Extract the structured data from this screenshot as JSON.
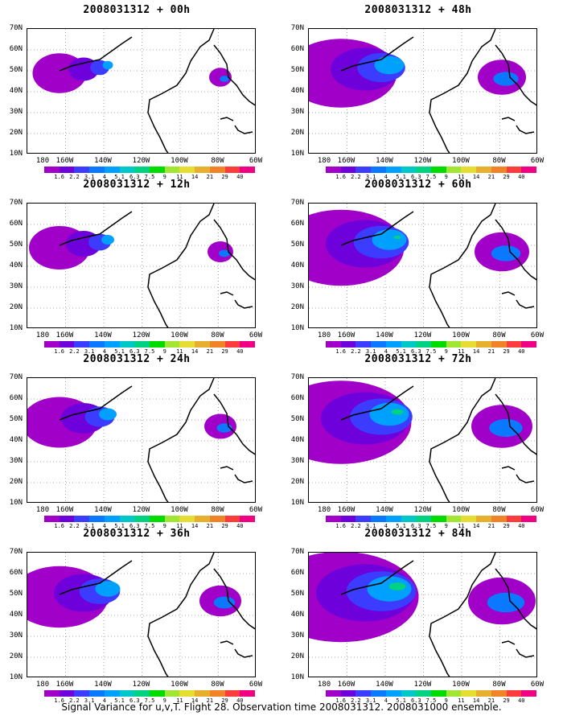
{
  "panels": [
    {
      "id": "p00",
      "title": "2008031312 + 00h",
      "intensity": 0.15
    },
    {
      "id": "p48",
      "title": "2008031312 + 48h",
      "intensity": 0.55
    },
    {
      "id": "p12",
      "title": "2008031312 + 12h",
      "intensity": 0.2
    },
    {
      "id": "p60",
      "title": "2008031312 + 60h",
      "intensity": 0.65
    },
    {
      "id": "p24",
      "title": "2008031312 + 24h",
      "intensity": 0.3
    },
    {
      "id": "p72",
      "title": "2008031312 + 72h",
      "intensity": 0.75
    },
    {
      "id": "p36",
      "title": "2008031312 + 36h",
      "intensity": 0.45
    },
    {
      "id": "p84",
      "title": "2008031312 + 84h",
      "intensity": 0.85
    }
  ],
  "y_axis_labels": [
    "70N",
    "60N",
    "50N",
    "40N",
    "30N",
    "20N",
    "10N"
  ],
  "x_axis_labels": [
    "180",
    "160W",
    "140W",
    "120W",
    "100W",
    "80W",
    "60W"
  ],
  "colorbar_labels": [
    "1.6",
    "2.2",
    "3.1",
    "4",
    "5.1",
    "6.3",
    "7.5",
    "9",
    "11",
    "14",
    "21",
    "29",
    "40"
  ],
  "colorbar_colors": [
    "#a000c8",
    "#6e00dc",
    "#3c3cff",
    "#0a78ff",
    "#00a0ff",
    "#00c8c8",
    "#00d282",
    "#00dc00",
    "#a0e632",
    "#e6dc32",
    "#e6af2d",
    "#f08228",
    "#fa3c3c",
    "#f00082"
  ],
  "caption": "Signal Variance for u,v,T. Flight 28. Observation time 2008031312. 2008031000 ensemble."
}
